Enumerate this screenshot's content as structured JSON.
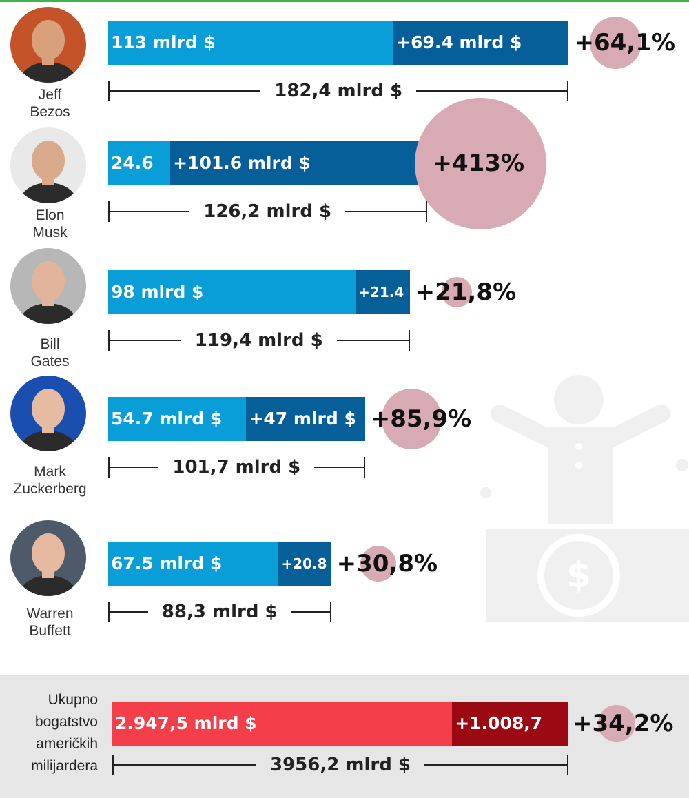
{
  "chart_data": {
    "type": "bar",
    "people": [
      {
        "name": "Jeff Bezos",
        "base": 113,
        "gain": 69.4,
        "base_label": "113 mlrd $",
        "gain_label": "+69.4 mlrd $",
        "total_label": "182,4 mlrd $",
        "pct": 64.1,
        "pct_label": "+64,1%"
      },
      {
        "name": "Elon Musk",
        "base": 24.6,
        "gain": 101.6,
        "base_label": "24.6",
        "gain_label": "+101.6 mlrd $",
        "total_label": "126,2 mlrd $",
        "pct": 413,
        "pct_label": "+413%"
      },
      {
        "name": "Bill Gates",
        "base": 98,
        "gain": 21.4,
        "base_label": "98 mlrd $",
        "gain_label": "+21.4",
        "total_label": "119,4 mlrd $",
        "pct": 21.8,
        "pct_label": "+21,8%"
      },
      {
        "name": "Mark Zuckerberg",
        "base": 54.7,
        "gain": 47,
        "base_label": "54.7 mlrd $",
        "gain_label": "+47 mlrd $",
        "total_label": "101,7 mlrd $",
        "pct": 85.9,
        "pct_label": "+85,9%"
      },
      {
        "name": "Warren Buffett",
        "base": 67.5,
        "gain": 20.8,
        "base_label": "67.5 mlrd $",
        "gain_label": "+20.8",
        "total_label": "88,3 mlrd $",
        "pct": 30.8,
        "pct_label": "+30,8%"
      }
    ],
    "total": {
      "name": "Ukupno bogatstvo američkih milijardera",
      "base": 2947.5,
      "gain": 1008.7,
      "base_label": "2.947,5 mlrd $",
      "gain_label": "+1.008,7",
      "total_label": "3956,2 mlrd $",
      "pct": 34.2,
      "pct_label": "+34,2%"
    }
  },
  "colors": {
    "base": "#0a9ed8",
    "gain": "#075f99",
    "total_base": "#f43f4b",
    "total_gain": "#9b0a12",
    "bubble": "#d8aab3",
    "panel": "#e6e6e6"
  },
  "icons": [
    "avatar-icon",
    "person-with-money-icon"
  ]
}
